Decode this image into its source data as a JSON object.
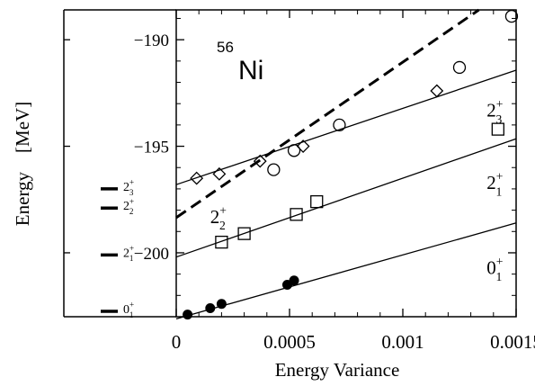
{
  "chart_data": {
    "type": "scatter",
    "title": "⁵⁶Ni",
    "title_main": "Ni",
    "title_sup": "56",
    "xlabel": "Energy Variance",
    "ylabel": "Energy    [MeV]",
    "xlim": [
      0,
      0.0015
    ],
    "ylim": [
      -203.0,
      -188.6
    ],
    "xticks": [
      {
        "value": 0,
        "label": "0"
      },
      {
        "value": 0.0005,
        "label": "0.0005"
      },
      {
        "value": 0.001,
        "label": "0.001"
      },
      {
        "value": 0.0015,
        "label": "0.0015"
      }
    ],
    "yticks": [
      {
        "value": -190,
        "label": "−190"
      },
      {
        "value": -195,
        "label": "−195"
      },
      {
        "value": -200,
        "label": "−200"
      }
    ],
    "series": [
      {
        "label_base": "0",
        "label_sup": "+",
        "label_sub": "1",
        "marker": "filled-circle",
        "points": [
          [
            5e-05,
            -202.9
          ],
          [
            0.00015,
            -202.6
          ],
          [
            0.0002,
            -202.4
          ],
          [
            0.00049,
            -201.5
          ],
          [
            0.00052,
            -201.3
          ]
        ],
        "fit": {
          "slope": 3000,
          "intercept": -203.1
        }
      },
      {
        "label_base": "2",
        "label_sup": "+",
        "label_sub": "1",
        "marker": "square",
        "points": [
          [
            0.0002,
            -199.5
          ],
          [
            0.0003,
            -199.1
          ],
          [
            0.00053,
            -198.2
          ],
          [
            0.00062,
            -197.6
          ],
          [
            0.00142,
            -194.2
          ]
        ],
        "fit": {
          "slope": 3700,
          "intercept": -200.2
        }
      },
      {
        "label_base": "2",
        "label_sup": "+",
        "label_sub": "2",
        "marker": "diamond",
        "points": [
          [
            9e-05,
            -196.5
          ],
          [
            0.00019,
            -196.3
          ],
          [
            0.00037,
            -195.7
          ],
          [
            0.00056,
            -195.0
          ],
          [
            0.00115,
            -192.4
          ]
        ],
        "fit": {
          "slope": 3580,
          "intercept": -196.8
        }
      },
      {
        "label_base": "2",
        "label_sup": "+",
        "label_sub": "3",
        "marker": "open-circle",
        "points": [
          [
            0.00043,
            -196.1
          ],
          [
            0.00052,
            -195.2
          ],
          [
            0.00072,
            -194.0
          ],
          [
            0.00125,
            -191.3
          ],
          [
            0.00148,
            -188.9
          ]
        ],
        "fit": {
          "slope": 7300,
          "intercept": -198.35,
          "dashed": true
        }
      }
    ],
    "extrapolated_levels": [
      {
        "base": "2",
        "sup": "+",
        "sub": "3",
        "value": -197.0
      },
      {
        "base": "2",
        "sup": "+",
        "sub": "2",
        "value": -197.9
      },
      {
        "base": "2",
        "sup": "+",
        "sub": "1",
        "value": -200.1
      },
      {
        "base": "0",
        "sup": "+",
        "sub": "1",
        "value": -203.0
      }
    ],
    "grid": false,
    "legend": "none"
  }
}
